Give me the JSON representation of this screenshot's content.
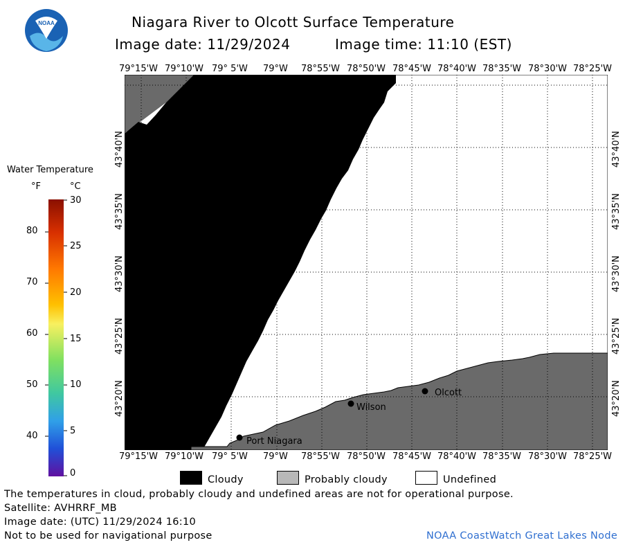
{
  "title": "Niagara River to Olcott Surface Temperature",
  "image_date_label": "Image date: 11/29/2024",
  "image_time_label": "Image time: 11:10 (EST)",
  "legend_scale": {
    "title": "Water Temperature",
    "unit_f": "°F",
    "unit_c": "°C",
    "f_ticks": [
      "80",
      "70",
      "60",
      "50",
      "40"
    ],
    "c_ticks": [
      "30",
      "25",
      "20",
      "15",
      "10",
      "5",
      "0"
    ]
  },
  "lon_labels": [
    "79°15'W",
    "79°10'W",
    "79° 5'W",
    "79°W",
    "78°55'W",
    "78°50'W",
    "78°45'W",
    "78°40'W",
    "78°35'W",
    "78°30'W",
    "78°25'W"
  ],
  "lat_labels": [
    "43°40'N",
    "43°35'N",
    "43°30'N",
    "43°25'N",
    "43°20'N"
  ],
  "places": [
    {
      "name": "Port Niagara"
    },
    {
      "name": "Wilson"
    },
    {
      "name": "Olcott"
    }
  ],
  "legend": {
    "cloudy": "Cloudy",
    "probably_cloudy": "Probably cloudy",
    "undefined": "Undefined"
  },
  "colors": {
    "cloudy": "#000000",
    "probably_cloudy": "#6a6a6a",
    "undefined": "#ffffff",
    "credit": "#2f6fd0"
  },
  "footer": {
    "note": "The temperatures in cloud, probably cloudy and undefined areas are not for operational purpose.",
    "satellite": "Satellite: AVHRRF_MB",
    "utc_date": "Image date: (UTC) 11/29/2024  16:10",
    "nav_warning": "Not to be used for navigational purpose",
    "credit": "NOAA CoastWatch Great Lakes Node"
  },
  "logo_text": "NOAA"
}
